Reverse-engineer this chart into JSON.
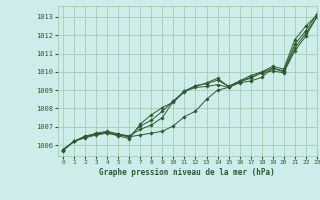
{
  "title": "Graphe pression niveau de la mer (hPa)",
  "background_color": "#ceecea",
  "grid_color": "#a0c8a0",
  "line_color": "#2d5a2d",
  "xlim": [
    -0.5,
    23
  ],
  "ylim": [
    1005.4,
    1013.6
  ],
  "yticks": [
    1006,
    1007,
    1008,
    1009,
    1010,
    1011,
    1012,
    1013
  ],
  "xticks": [
    0,
    1,
    2,
    3,
    4,
    5,
    6,
    7,
    8,
    9,
    10,
    11,
    12,
    13,
    14,
    15,
    16,
    17,
    18,
    19,
    20,
    21,
    22,
    23
  ],
  "series": [
    [
      1005.7,
      1006.2,
      1006.4,
      1006.55,
      1006.65,
      1006.55,
      1006.45,
      1006.55,
      1006.65,
      1006.75,
      1007.05,
      1007.55,
      1007.85,
      1008.5,
      1009.0,
      1009.15,
      1009.45,
      1009.65,
      1009.95,
      1010.05,
      1009.95,
      1011.15,
      1011.95,
      1013.0
    ],
    [
      1005.75,
      1006.2,
      1006.45,
      1006.6,
      1006.7,
      1006.6,
      1006.5,
      1006.85,
      1007.1,
      1007.5,
      1008.4,
      1008.95,
      1009.15,
      1009.2,
      1009.3,
      1009.15,
      1009.4,
      1009.5,
      1009.7,
      1010.2,
      1010.0,
      1011.3,
      1012.1,
      1013.0
    ],
    [
      1005.75,
      1006.2,
      1006.45,
      1006.65,
      1006.75,
      1006.6,
      1006.45,
      1007.05,
      1007.35,
      1007.85,
      1008.4,
      1008.95,
      1009.25,
      1009.35,
      1009.55,
      1009.2,
      1009.5,
      1009.7,
      1009.95,
      1010.2,
      1010.05,
      1011.5,
      1012.25,
      1013.15
    ],
    [
      1005.75,
      1006.2,
      1006.5,
      1006.6,
      1006.65,
      1006.5,
      1006.35,
      1007.15,
      1007.65,
      1008.05,
      1008.35,
      1008.9,
      1009.2,
      1009.4,
      1009.65,
      1009.2,
      1009.5,
      1009.8,
      1010.0,
      1010.3,
      1010.15,
      1011.75,
      1012.5,
      1013.1
    ]
  ]
}
